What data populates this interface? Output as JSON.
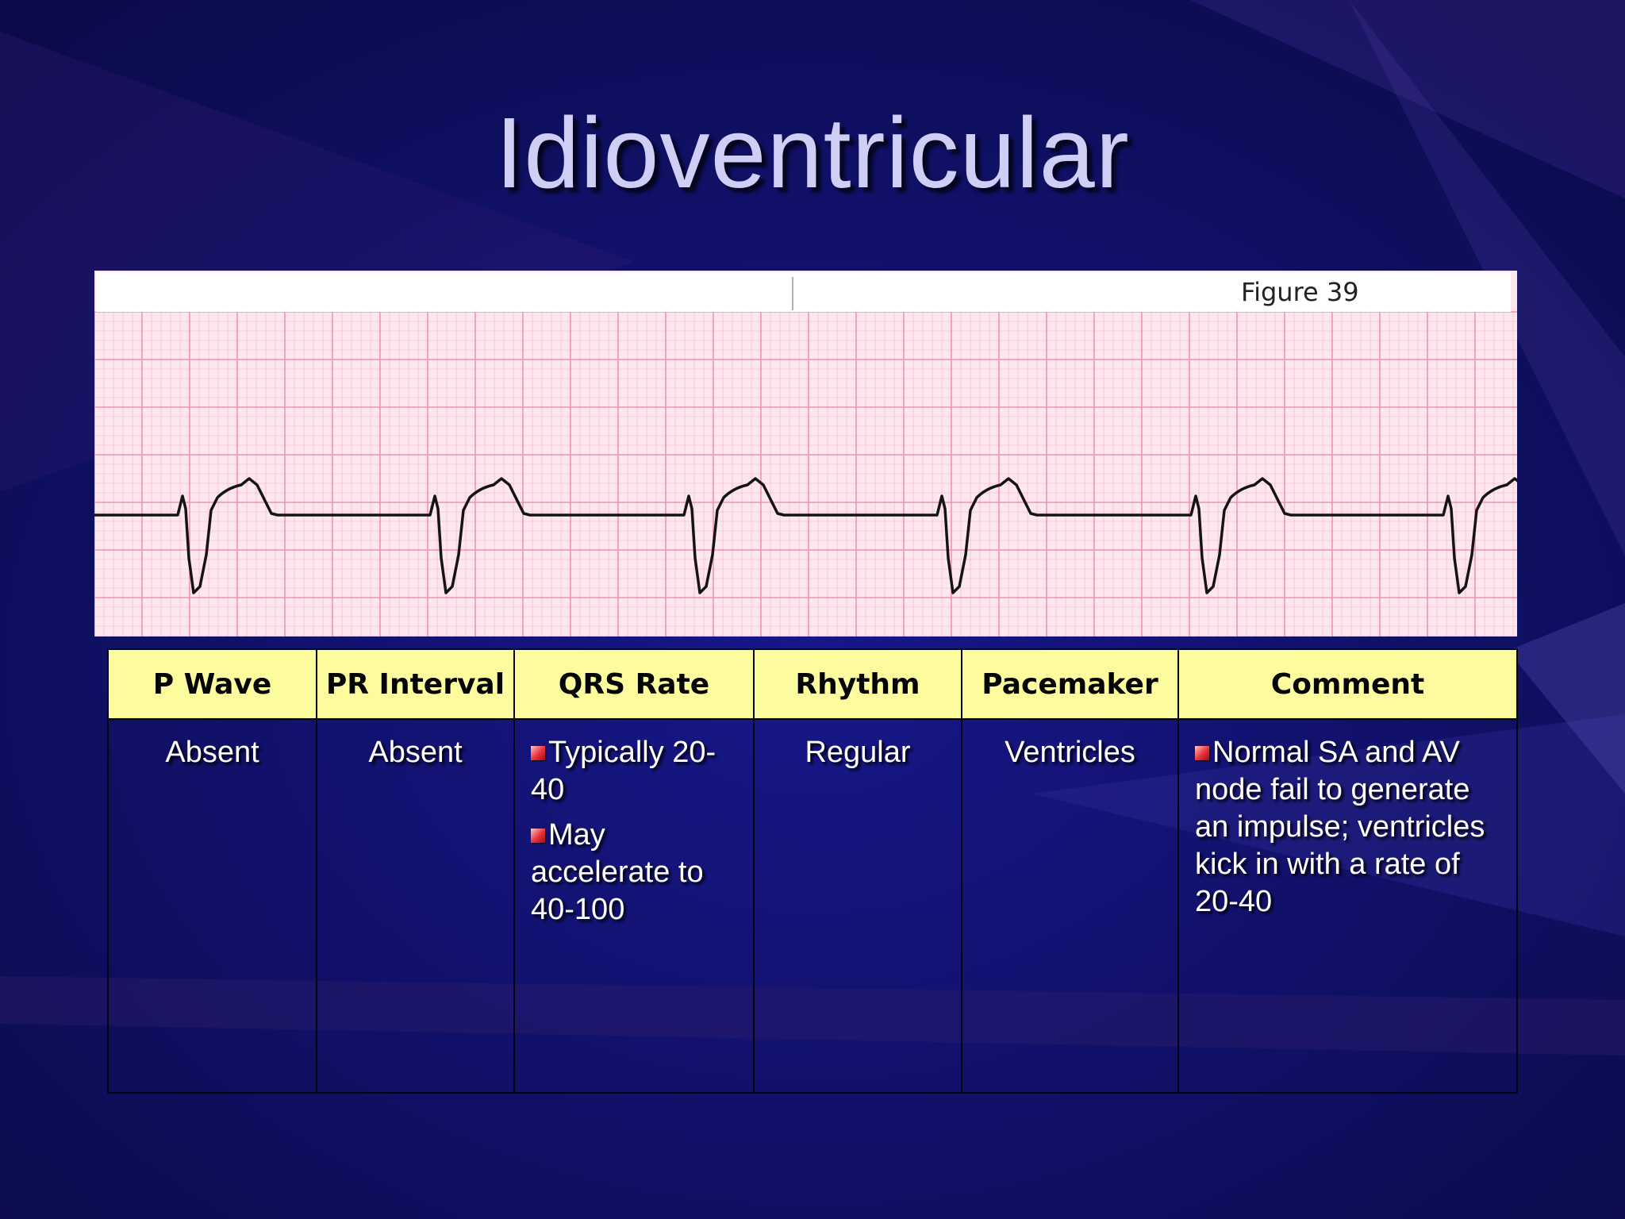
{
  "slide": {
    "title": "Idioventricular"
  },
  "ecg_strip": {
    "figure_label": "Figure 39",
    "trace_color": "#141414",
    "grid_color": "#f08cb0"
  },
  "table": {
    "headers": [
      "P Wave",
      "PR Interval",
      "QRS Rate",
      "Rhythm",
      "Pacemaker",
      "Comment"
    ],
    "p_wave": "Absent",
    "pr_interval": "Absent",
    "qrs_rate": [
      "Typically 20-40",
      "May accelerate to 40-100"
    ],
    "rhythm": "Regular",
    "pacemaker": "Ventricles",
    "comment": [
      "Normal SA and AV node fail to generate an impulse; ventricles kick in with a rate of 20-40"
    ],
    "header_color": "#fcfc9e",
    "bullet_color": "#e8303a"
  }
}
